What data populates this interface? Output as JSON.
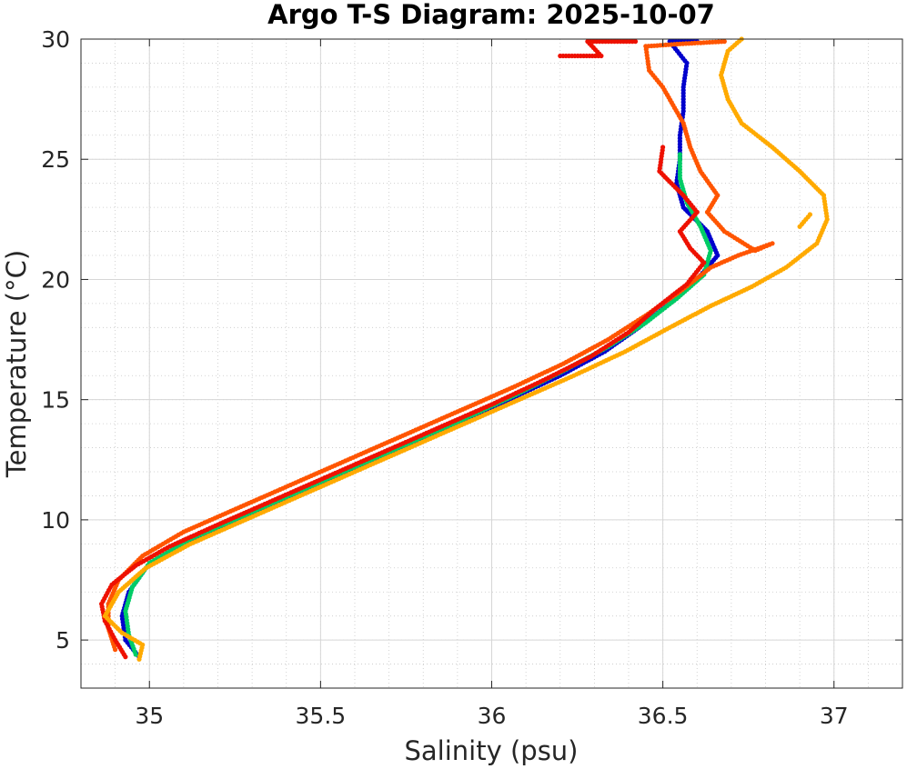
{
  "chart_data": {
    "type": "scatter",
    "title": "Argo T-S Diagram: 2025-10-07",
    "xlabel": "Salinity (psu)",
    "ylabel": "Temperature (°C)",
    "xlim": [
      34.8,
      37.2
    ],
    "ylim": [
      3,
      30
    ],
    "xticks": [
      35,
      35.5,
      36,
      36.5,
      37
    ],
    "xtick_labels": [
      "35",
      "35.5",
      "36",
      "36.5",
      "37"
    ],
    "yticks": [
      5,
      10,
      15,
      20,
      25,
      30
    ],
    "ytick_labels": [
      "5",
      "10",
      "15",
      "20",
      "25",
      "30"
    ],
    "grid": true,
    "minor_grid": true,
    "legend": "none",
    "series": [
      {
        "color": "#0000cc",
        "points": [
          [
            34.97,
            4.3
          ],
          [
            34.93,
            5.0
          ],
          [
            34.92,
            6.0
          ],
          [
            34.94,
            7.0
          ],
          [
            34.99,
            8.0
          ],
          [
            35.1,
            9.0
          ],
          [
            35.25,
            10.0
          ],
          [
            35.42,
            11.0
          ],
          [
            35.58,
            12.0
          ],
          [
            35.74,
            13.0
          ],
          [
            35.9,
            14.0
          ],
          [
            36.05,
            15.0
          ],
          [
            36.2,
            16.0
          ],
          [
            36.33,
            17.0
          ],
          [
            36.43,
            18.0
          ],
          [
            36.52,
            19.0
          ],
          [
            36.6,
            20.0
          ],
          [
            36.66,
            21.0
          ],
          [
            36.63,
            22.0
          ],
          [
            36.56,
            23.0
          ],
          [
            36.54,
            24.0
          ],
          [
            36.55,
            25.0
          ],
          [
            36.55,
            26.0
          ],
          [
            36.56,
            27.0
          ],
          [
            36.56,
            28.0
          ],
          [
            36.57,
            29.0
          ],
          [
            36.52,
            29.9
          ],
          [
            36.6,
            29.9
          ]
        ]
      },
      {
        "color": "#00cc66",
        "points": [
          [
            34.96,
            4.4
          ],
          [
            34.94,
            5.2
          ],
          [
            34.93,
            6.2
          ],
          [
            34.95,
            7.2
          ],
          [
            35.0,
            8.2
          ],
          [
            35.12,
            9.2
          ],
          [
            35.28,
            10.2
          ],
          [
            35.44,
            11.2
          ],
          [
            35.6,
            12.2
          ],
          [
            35.76,
            13.2
          ],
          [
            35.92,
            14.2
          ],
          [
            36.07,
            15.2
          ],
          [
            36.21,
            16.2
          ],
          [
            36.34,
            17.2
          ],
          [
            36.45,
            18.2
          ],
          [
            36.54,
            19.2
          ],
          [
            36.62,
            20.2
          ],
          [
            36.64,
            21.2
          ],
          [
            36.61,
            22.2
          ],
          [
            36.57,
            23.2
          ],
          [
            36.55,
            24.2
          ],
          [
            36.55,
            25.2
          ]
        ]
      },
      {
        "color": "#ff5500",
        "points": [
          [
            34.9,
            4.6
          ],
          [
            34.88,
            5.5
          ],
          [
            34.88,
            6.5
          ],
          [
            34.91,
            7.5
          ],
          [
            34.98,
            8.5
          ],
          [
            35.1,
            9.5
          ],
          [
            35.26,
            10.5
          ],
          [
            35.42,
            11.5
          ],
          [
            35.58,
            12.5
          ],
          [
            35.74,
            13.5
          ],
          [
            35.9,
            14.5
          ],
          [
            36.06,
            15.5
          ],
          [
            36.21,
            16.5
          ],
          [
            36.34,
            17.5
          ],
          [
            36.45,
            18.5
          ],
          [
            36.55,
            19.5
          ],
          [
            36.64,
            20.5
          ],
          [
            36.72,
            21.0
          ],
          [
            36.82,
            21.5
          ],
          [
            36.77,
            21.2
          ],
          [
            36.68,
            22.0
          ],
          [
            36.63,
            22.8
          ],
          [
            36.66,
            23.5
          ],
          [
            36.61,
            24.5
          ],
          [
            36.58,
            25.5
          ],
          [
            36.56,
            26.5
          ],
          [
            36.5,
            28.0
          ],
          [
            36.46,
            28.7
          ],
          [
            36.45,
            29.7
          ],
          [
            36.55,
            29.8
          ],
          [
            36.68,
            29.9
          ]
        ]
      },
      {
        "color": "#ee1100",
        "points": [
          [
            34.93,
            4.3
          ],
          [
            34.9,
            5.0
          ],
          [
            34.87,
            5.8
          ],
          [
            34.86,
            6.5
          ],
          [
            34.89,
            7.3
          ],
          [
            34.96,
            8.1
          ],
          [
            35.06,
            8.9
          ],
          [
            35.2,
            9.8
          ],
          [
            35.36,
            10.8
          ],
          [
            35.52,
            11.8
          ],
          [
            35.68,
            12.8
          ],
          [
            35.84,
            13.8
          ],
          [
            36.0,
            14.8
          ],
          [
            36.15,
            15.8
          ],
          [
            36.29,
            16.8
          ],
          [
            36.4,
            17.8
          ],
          [
            36.48,
            18.8
          ],
          [
            36.57,
            19.8
          ],
          [
            36.62,
            20.7
          ],
          [
            36.58,
            21.3
          ],
          [
            36.55,
            22.0
          ],
          [
            36.6,
            22.8
          ],
          [
            36.56,
            23.5
          ],
          [
            36.49,
            24.5
          ],
          [
            36.5,
            25.5
          ],
          [
            36.2,
            29.3
          ],
          [
            36.32,
            29.3
          ],
          [
            36.28,
            29.9
          ],
          [
            36.42,
            29.9
          ]
        ]
      },
      {
        "color": "#ffaa00",
        "points": [
          [
            34.97,
            4.2
          ],
          [
            34.98,
            4.8
          ],
          [
            34.92,
            5.3
          ],
          [
            34.87,
            6.0
          ],
          [
            34.91,
            7.0
          ],
          [
            34.99,
            8.0
          ],
          [
            35.12,
            9.0
          ],
          [
            35.28,
            10.0
          ],
          [
            35.44,
            11.0
          ],
          [
            35.6,
            12.0
          ],
          [
            35.76,
            13.0
          ],
          [
            35.92,
            14.0
          ],
          [
            36.08,
            15.0
          ],
          [
            36.24,
            16.0
          ],
          [
            36.39,
            17.0
          ],
          [
            36.52,
            18.0
          ],
          [
            36.64,
            18.9
          ],
          [
            36.76,
            19.7
          ],
          [
            36.86,
            20.5
          ],
          [
            36.95,
            21.5
          ],
          [
            36.98,
            22.5
          ],
          [
            36.97,
            23.5
          ],
          [
            36.9,
            24.5
          ],
          [
            36.82,
            25.5
          ],
          [
            36.73,
            26.5
          ],
          [
            36.69,
            27.5
          ],
          [
            36.67,
            28.5
          ],
          [
            36.69,
            29.5
          ],
          [
            36.73,
            30.0
          ],
          [
            36.9,
            22.2
          ],
          [
            36.93,
            22.7
          ]
        ]
      }
    ]
  }
}
